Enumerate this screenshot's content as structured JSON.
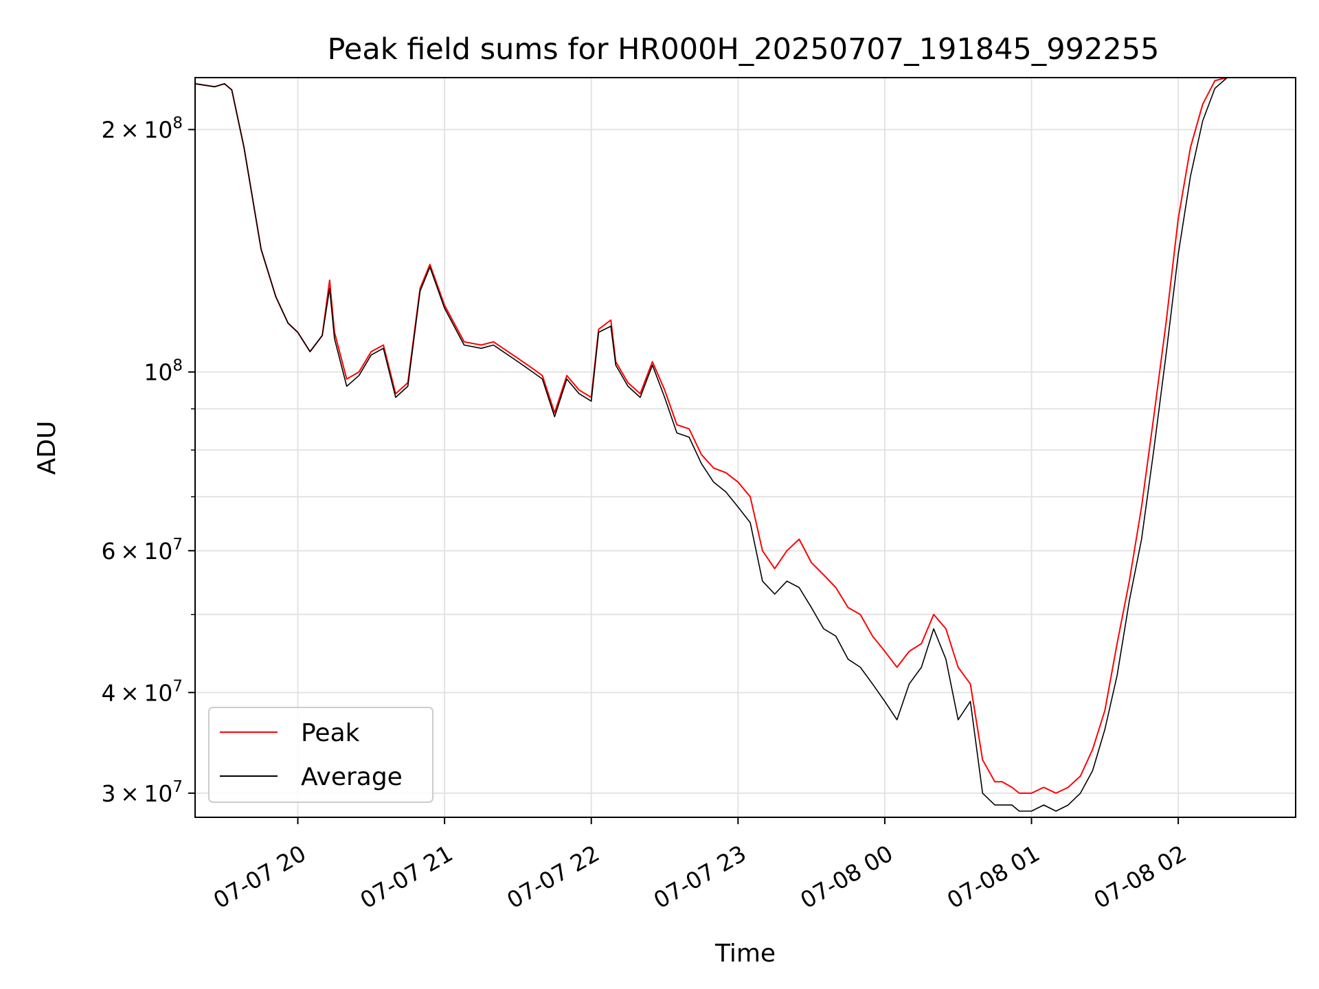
{
  "chart_data": {
    "type": "line",
    "title": "Peak field sums for HR000H_20250707_191845_992255",
    "xlabel": "Time",
    "ylabel": "ADU",
    "y_scale": "log",
    "ylim": [
      28000000,
      232000000
    ],
    "xlim": [
      "2025-07-07T19:18",
      "2025-07-08T02:48"
    ],
    "grid": true,
    "legend_position": "lower-left",
    "x_ticks": [
      "07-07 20",
      "07-07 21",
      "07-07 22",
      "07-07 23",
      "07-08 00",
      "07-08 01",
      "07-08 02"
    ],
    "x_tick_values": [
      "2025-07-07T20:00",
      "2025-07-07T21:00",
      "2025-07-07T22:00",
      "2025-07-07T23:00",
      "2025-07-08T00:00",
      "2025-07-08T01:00",
      "2025-07-08T02:00"
    ],
    "y_ticks": [
      {
        "value": 30000000,
        "coef": "3",
        "exp": "7"
      },
      {
        "value": 40000000,
        "coef": "4",
        "exp": "7"
      },
      {
        "value": 60000000,
        "coef": "6",
        "exp": "7"
      },
      {
        "value": 100000000,
        "coef": "",
        "exp": "8"
      },
      {
        "value": 200000000,
        "coef": "2",
        "exp": "8"
      }
    ],
    "y_minor_ticks": [
      50000000,
      70000000,
      80000000,
      90000000
    ],
    "series": [
      {
        "name": "Average",
        "color": "#000000",
        "x": [
          "2025-07-07T19:18",
          "2025-07-07T19:26",
          "2025-07-07T19:30",
          "2025-07-07T19:33",
          "2025-07-07T19:38",
          "2025-07-07T19:45",
          "2025-07-07T19:51",
          "2025-07-07T19:56",
          "2025-07-07T20:00",
          "2025-07-07T20:05",
          "2025-07-07T20:10",
          "2025-07-07T20:13",
          "2025-07-07T20:15",
          "2025-07-07T20:20",
          "2025-07-07T20:25",
          "2025-07-07T20:30",
          "2025-07-07T20:35",
          "2025-07-07T20:40",
          "2025-07-07T20:45",
          "2025-07-07T20:50",
          "2025-07-07T20:54",
          "2025-07-07T21:00",
          "2025-07-07T21:08",
          "2025-07-07T21:15",
          "2025-07-07T21:20",
          "2025-07-07T21:30",
          "2025-07-07T21:36",
          "2025-07-07T21:40",
          "2025-07-07T21:45",
          "2025-07-07T21:50",
          "2025-07-07T21:55",
          "2025-07-07T22:00",
          "2025-07-07T22:03",
          "2025-07-07T22:08",
          "2025-07-07T22:10",
          "2025-07-07T22:15",
          "2025-07-07T22:20",
          "2025-07-07T22:25",
          "2025-07-07T22:30",
          "2025-07-07T22:35",
          "2025-07-07T22:40",
          "2025-07-07T22:45",
          "2025-07-07T22:50",
          "2025-07-07T22:55",
          "2025-07-07T23:00",
          "2025-07-07T23:05",
          "2025-07-07T23:10",
          "2025-07-07T23:15",
          "2025-07-07T23:20",
          "2025-07-07T23:25",
          "2025-07-07T23:30",
          "2025-07-07T23:35",
          "2025-07-07T23:40",
          "2025-07-07T23:45",
          "2025-07-07T23:50",
          "2025-07-07T23:55",
          "2025-07-08T00:00",
          "2025-07-08T00:05",
          "2025-07-08T00:10",
          "2025-07-08T00:15",
          "2025-07-08T00:20",
          "2025-07-08T00:25",
          "2025-07-08T00:30",
          "2025-07-08T00:35",
          "2025-07-08T00:40",
          "2025-07-08T00:45",
          "2025-07-08T00:48",
          "2025-07-08T00:52",
          "2025-07-08T00:55",
          "2025-07-08T01:00",
          "2025-07-08T01:05",
          "2025-07-08T01:10",
          "2025-07-08T01:15",
          "2025-07-08T01:20",
          "2025-07-08T01:25",
          "2025-07-08T01:30",
          "2025-07-08T01:35",
          "2025-07-08T01:40",
          "2025-07-08T01:45",
          "2025-07-08T01:50",
          "2025-07-08T01:55",
          "2025-07-08T02:00",
          "2025-07-08T02:05",
          "2025-07-08T02:10",
          "2025-07-08T02:15",
          "2025-07-08T02:20",
          "2025-07-08T02:25",
          "2025-07-08T02:30",
          "2025-07-08T02:35",
          "2025-07-08T02:38",
          "2025-07-08T02:48"
        ],
        "y": [
          228000000,
          226000000,
          228000000,
          224000000,
          190000000,
          142000000,
          124000000,
          115000000,
          112000000,
          106000000,
          111000000,
          127000000,
          110000000,
          96000000,
          99000000,
          105000000,
          107000000,
          93000000,
          96000000,
          126000000,
          135000000,
          120000000,
          108000000,
          107000000,
          108000000,
          103000000,
          100000000,
          98000000,
          88000000,
          98000000,
          94000000,
          92000000,
          112000000,
          114000000,
          102000000,
          96000000,
          93000000,
          102000000,
          93000000,
          84000000,
          83000000,
          77000000,
          73000000,
          71000000,
          68000000,
          65000000,
          55000000,
          53000000,
          55000000,
          54000000,
          51000000,
          48000000,
          47000000,
          44000000,
          43000000,
          41000000,
          39000000,
          37000000,
          41000000,
          43000000,
          48000000,
          44000000,
          37000000,
          39000000,
          30000000,
          29000000,
          29000000,
          29000000,
          28500000,
          28500000,
          29000000,
          28500000,
          29000000,
          30000000,
          32000000,
          36000000,
          42000000,
          52000000,
          62000000,
          80000000,
          105000000,
          140000000,
          175000000,
          205000000,
          225000000,
          232000000,
          232000000,
          232000000,
          232000000,
          232000000,
          232000000
        ]
      },
      {
        "name": "Peak",
        "color": "#ff0000",
        "x": [
          "2025-07-07T19:18",
          "2025-07-07T19:26",
          "2025-07-07T19:30",
          "2025-07-07T19:33",
          "2025-07-07T19:38",
          "2025-07-07T19:45",
          "2025-07-07T19:51",
          "2025-07-07T19:56",
          "2025-07-07T20:00",
          "2025-07-07T20:05",
          "2025-07-07T20:10",
          "2025-07-07T20:13",
          "2025-07-07T20:15",
          "2025-07-07T20:20",
          "2025-07-07T20:25",
          "2025-07-07T20:30",
          "2025-07-07T20:35",
          "2025-07-07T20:40",
          "2025-07-07T20:45",
          "2025-07-07T20:50",
          "2025-07-07T20:54",
          "2025-07-07T21:00",
          "2025-07-07T21:08",
          "2025-07-07T21:15",
          "2025-07-07T21:20",
          "2025-07-07T21:30",
          "2025-07-07T21:36",
          "2025-07-07T21:40",
          "2025-07-07T21:45",
          "2025-07-07T21:50",
          "2025-07-07T21:55",
          "2025-07-07T22:00",
          "2025-07-07T22:03",
          "2025-07-07T22:08",
          "2025-07-07T22:10",
          "2025-07-07T22:15",
          "2025-07-07T22:20",
          "2025-07-07T22:25",
          "2025-07-07T22:30",
          "2025-07-07T22:35",
          "2025-07-07T22:40",
          "2025-07-07T22:45",
          "2025-07-07T22:50",
          "2025-07-07T22:55",
          "2025-07-07T23:00",
          "2025-07-07T23:05",
          "2025-07-07T23:10",
          "2025-07-07T23:15",
          "2025-07-07T23:20",
          "2025-07-07T23:25",
          "2025-07-07T23:30",
          "2025-07-07T23:35",
          "2025-07-07T23:40",
          "2025-07-07T23:45",
          "2025-07-07T23:50",
          "2025-07-07T23:55",
          "2025-07-08T00:00",
          "2025-07-08T00:05",
          "2025-07-08T00:10",
          "2025-07-08T00:15",
          "2025-07-08T00:20",
          "2025-07-08T00:25",
          "2025-07-08T00:30",
          "2025-07-08T00:35",
          "2025-07-08T00:40",
          "2025-07-08T00:45",
          "2025-07-08T00:48",
          "2025-07-08T00:52",
          "2025-07-08T00:55",
          "2025-07-08T01:00",
          "2025-07-08T01:05",
          "2025-07-08T01:10",
          "2025-07-08T01:15",
          "2025-07-08T01:20",
          "2025-07-08T01:25",
          "2025-07-08T01:30",
          "2025-07-08T01:35",
          "2025-07-08T01:40",
          "2025-07-08T01:45",
          "2025-07-08T01:50",
          "2025-07-08T01:55",
          "2025-07-08T02:00",
          "2025-07-08T02:05",
          "2025-07-08T02:10",
          "2025-07-08T02:15",
          "2025-07-08T02:20",
          "2025-07-08T02:25",
          "2025-07-08T02:30",
          "2025-07-08T02:35",
          "2025-07-08T02:38",
          "2025-07-08T02:48"
        ],
        "y": [
          228000000,
          226000000,
          228000000,
          224000000,
          190000000,
          142000000,
          124000000,
          115000000,
          112000000,
          106000000,
          111000000,
          130000000,
          112000000,
          98000000,
          100000000,
          106000000,
          108000000,
          94000000,
          97000000,
          127000000,
          136000000,
          121000000,
          109000000,
          108000000,
          109000000,
          104000000,
          101000000,
          99000000,
          89000000,
          99000000,
          95000000,
          93000000,
          113000000,
          116000000,
          103000000,
          97000000,
          94000000,
          103000000,
          95000000,
          86000000,
          85000000,
          79000000,
          76000000,
          75000000,
          73000000,
          70000000,
          60000000,
          57000000,
          60000000,
          62000000,
          58000000,
          56000000,
          54000000,
          51000000,
          50000000,
          47000000,
          45000000,
          43000000,
          45000000,
          46000000,
          50000000,
          48000000,
          43000000,
          41000000,
          33000000,
          31000000,
          31000000,
          30500000,
          30000000,
          30000000,
          30500000,
          30000000,
          30500000,
          31500000,
          34000000,
          38000000,
          46000000,
          55000000,
          68000000,
          88000000,
          115000000,
          155000000,
          190000000,
          215000000,
          230000000,
          232000000,
          232000000,
          232000000,
          232000000,
          232000000,
          232000000
        ]
      }
    ]
  }
}
